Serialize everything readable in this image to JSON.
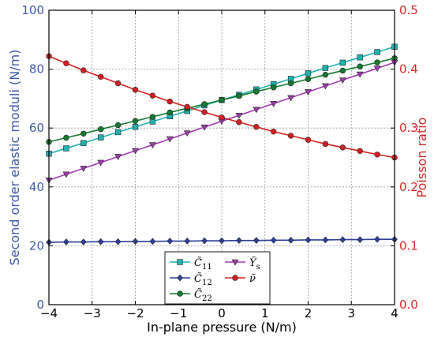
{
  "chart_data": {
    "type": "line",
    "xlabel": "In-plane pressure (N/m)",
    "ylabel_left": "Second order elastic moduli (N/m)",
    "ylabel_right": "Poisson ratio",
    "xlim": [
      -4,
      4
    ],
    "ylim_left": [
      0,
      100
    ],
    "ylim_right": [
      0.0,
      0.5
    ],
    "x_ticks": [
      "−4",
      "−3",
      "−2",
      "−1",
      "0",
      "1",
      "2",
      "3",
      "4"
    ],
    "y_left_ticks": [
      "0",
      "20",
      "40",
      "60",
      "80",
      "100"
    ],
    "y_right_ticks": [
      "0.0",
      "0.1",
      "0.2",
      "0.3",
      "0.4",
      "0.5"
    ],
    "grid": true,
    "legend_position": "bottom-center",
    "colors": {
      "left_axis": "#3f5ba9",
      "right_axis": "#d42a2a",
      "c11": "#1fb3b3",
      "c12": "#2b3f9e",
      "c22": "#137a2e",
      "ys": "#a23bb0",
      "nu": "#d42020"
    },
    "x": [
      -4,
      -3.6,
      -3.2,
      -2.8,
      -2.4,
      -2,
      -1.6,
      -1.2,
      -0.8,
      -0.4,
      0,
      0.4,
      0.8,
      1.2,
      1.6,
      2,
      2.4,
      2.8,
      3.2,
      3.6,
      4
    ],
    "series": [
      {
        "key": "c11",
        "name": "C̃",
        "sub": "11",
        "axis": "left",
        "marker": "square",
        "values": [
          51.3,
          53.1,
          54.9,
          56.8,
          58.6,
          60.4,
          62.2,
          64.0,
          65.8,
          67.7,
          69.5,
          71.3,
          73.1,
          74.9,
          76.7,
          78.6,
          80.4,
          82.2,
          84.0,
          85.8,
          87.6
        ]
      },
      {
        "key": "c12",
        "name": "C̃",
        "sub": "12",
        "axis": "left",
        "marker": "diamond",
        "values": [
          21.2,
          21.3,
          21.3,
          21.4,
          21.4,
          21.5,
          21.5,
          21.6,
          21.6,
          21.7,
          21.7,
          21.8,
          21.8,
          21.9,
          21.9,
          22.0,
          22.0,
          22.1,
          22.1,
          22.2,
          22.2
        ]
      },
      {
        "key": "c22",
        "name": "C̃",
        "sub": "22",
        "axis": "left",
        "marker": "circle",
        "values": [
          55.3,
          56.7,
          58.1,
          59.6,
          61.0,
          62.4,
          63.8,
          65.3,
          66.7,
          68.1,
          69.5,
          70.9,
          72.4,
          73.8,
          75.2,
          76.6,
          78.1,
          79.5,
          80.9,
          82.3,
          83.7
        ]
      },
      {
        "key": "ys",
        "name": "Ỹ",
        "sub": "s",
        "axis": "left",
        "marker": "triangle-down",
        "values": [
          42.3,
          44.3,
          46.3,
          48.3,
          50.3,
          52.3,
          54.3,
          56.3,
          58.3,
          60.3,
          62.3,
          64.3,
          66.3,
          68.3,
          70.3,
          72.3,
          74.3,
          76.3,
          78.3,
          80.3,
          82.3
        ]
      },
      {
        "key": "nu",
        "name": "ν̃",
        "sub": "",
        "axis": "right",
        "marker": "circle",
        "values": [
          0.422,
          0.41,
          0.398,
          0.387,
          0.376,
          0.365,
          0.355,
          0.345,
          0.336,
          0.327,
          0.318,
          0.31,
          0.302,
          0.294,
          0.287,
          0.28,
          0.273,
          0.267,
          0.261,
          0.255,
          0.25
        ]
      }
    ]
  }
}
